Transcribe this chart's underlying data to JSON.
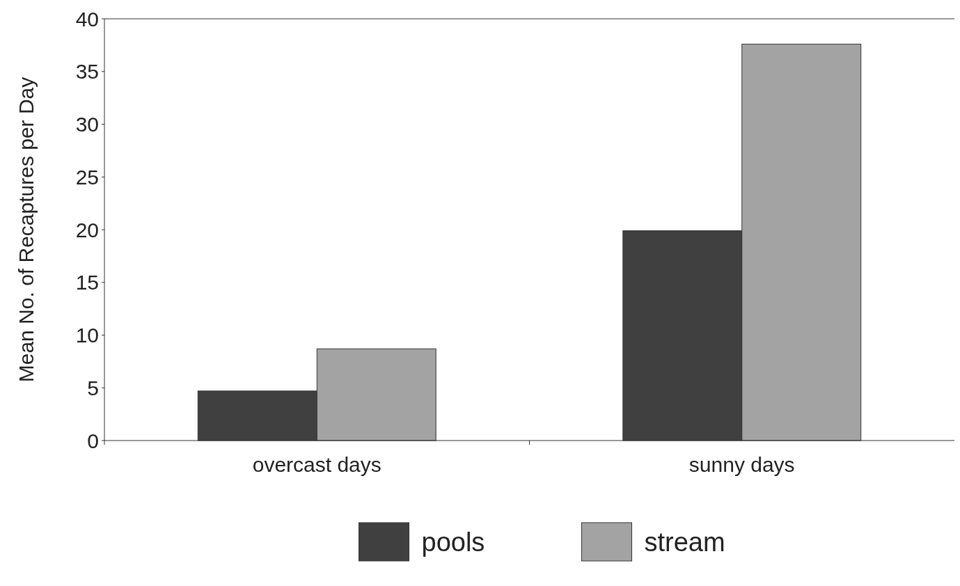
{
  "chart_data": {
    "type": "bar",
    "ylabel": "Mean No. of Recaptures per Day",
    "categories": [
      "overcast days",
      "sunny days"
    ],
    "series": [
      {
        "name": "pools",
        "color": "#404040",
        "values": [
          4.7,
          19.9
        ]
      },
      {
        "name": "stream",
        "color": "#a3a3a3",
        "values": [
          8.7,
          37.6
        ]
      }
    ],
    "ylim": [
      0,
      40
    ],
    "yticks": [
      0,
      5,
      10,
      15,
      20,
      25,
      30,
      35,
      40
    ],
    "grid": false,
    "legend": "bottom"
  }
}
